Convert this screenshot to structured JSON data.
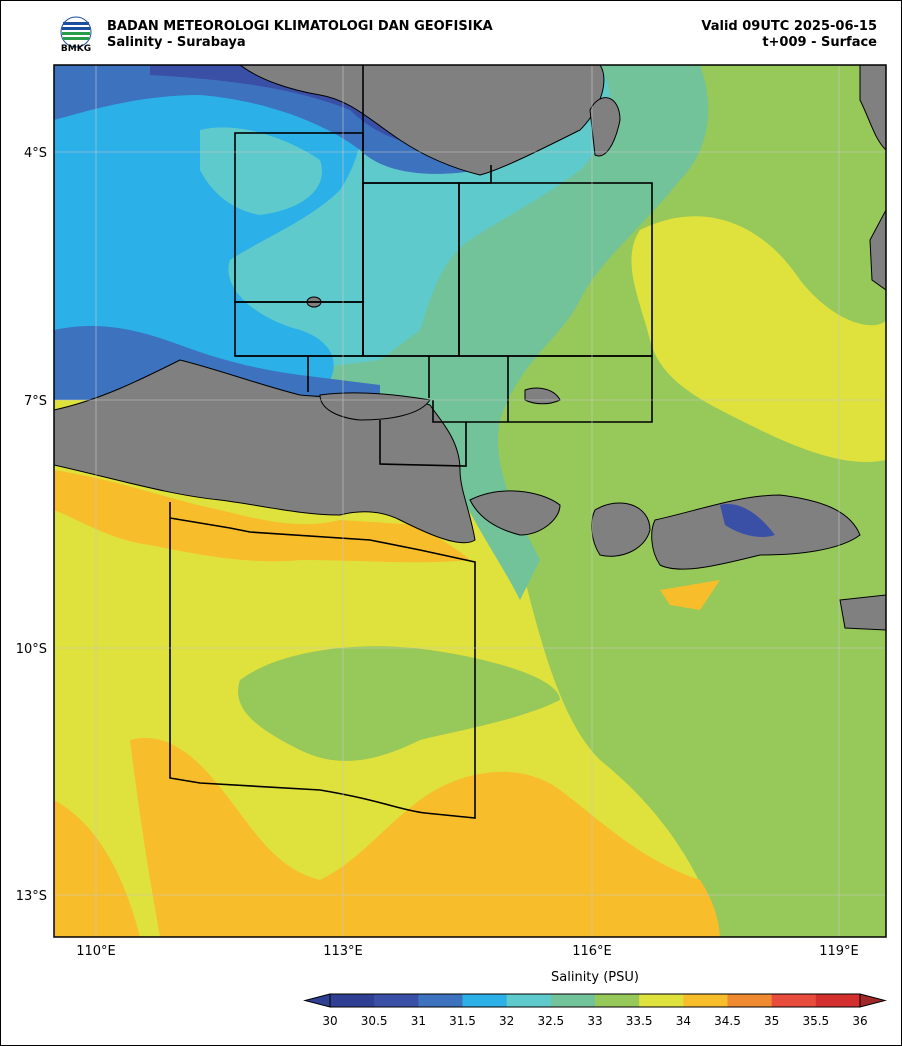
{
  "header": {
    "org": "BADAN METEOROLOGI KLIMATOLOGI DAN GEOFISIKA",
    "product": "Salinity - Surabaya",
    "valid": "Valid 09UTC 2025-06-15",
    "lead": "t+009 - Surface"
  },
  "logo": {
    "text": "BMKG"
  },
  "axes": {
    "lat_labels": [
      "4°S",
      "7°S",
      "10°S",
      "13°S"
    ],
    "lon_labels": [
      "110°E",
      "113°E",
      "116°E",
      "119°E"
    ]
  },
  "colorbar": {
    "title": "Salinity (PSU)",
    "ticks": [
      "30",
      "30.5",
      "31",
      "31.5",
      "32",
      "32.5",
      "33",
      "33.5",
      "34",
      "34.5",
      "35",
      "35.5",
      "36"
    ],
    "colors": [
      "#2f3f94",
      "#3a4fa6",
      "#3d72bf",
      "#2bb0e8",
      "#5ecacc",
      "#72c29a",
      "#97c85a",
      "#dfe13d",
      "#f8bd2b",
      "#ef8a30",
      "#e84c3c",
      "#d42f2f"
    ]
  },
  "colors": {
    "land": "#808080",
    "frame": "#000000"
  }
}
